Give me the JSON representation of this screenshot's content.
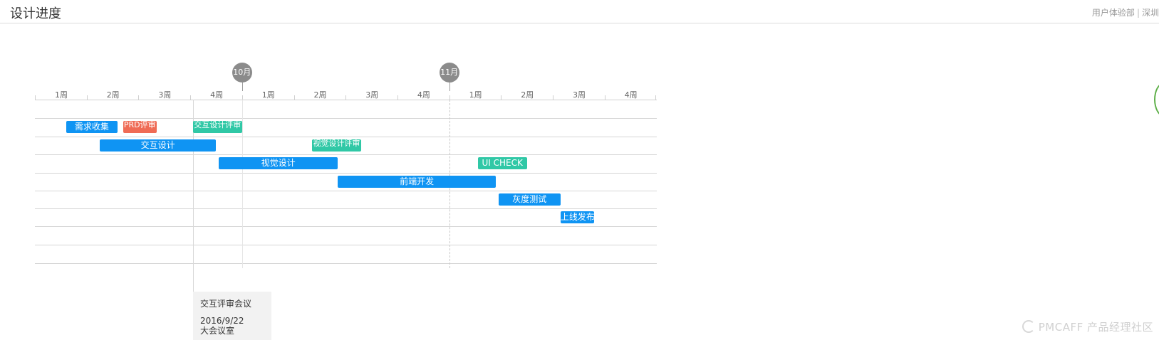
{
  "header": {
    "title": "设计进度",
    "org": "用户体验部",
    "separator": "|",
    "city": "深圳"
  },
  "timeline": {
    "months": [
      {
        "label": "10月"
      },
      {
        "label": "11月"
      }
    ],
    "weeks": [
      "1周",
      "2周",
      "3周",
      "4周",
      "1周",
      "2周",
      "3周",
      "4周",
      "1周",
      "2周",
      "3周",
      "4周"
    ]
  },
  "tasks": [
    {
      "id": "need",
      "label": "需求收集",
      "color": "blue",
      "start_week": 0.6,
      "end_week": 1.6
    },
    {
      "id": "prd",
      "label": "PRD评审",
      "color": "red",
      "start_week": 1.7,
      "end_week": 2.35
    },
    {
      "id": "ixreview",
      "label": "交互设计评审",
      "color": "teal",
      "start_week": 3.05,
      "end_week": 4.0
    },
    {
      "id": "ix",
      "label": "交互设计",
      "color": "blue",
      "start_week": 1.25,
      "end_week": 3.5
    },
    {
      "id": "vreview",
      "label": "视觉设计评审",
      "color": "teal",
      "start_week": 5.35,
      "end_week": 6.3
    },
    {
      "id": "visual",
      "label": "视觉设计",
      "color": "blue",
      "start_week": 3.55,
      "end_week": 5.85
    },
    {
      "id": "uicheck",
      "label": "UI CHECK",
      "color": "teal",
      "start_week": 8.55,
      "end_week": 9.5
    },
    {
      "id": "fe",
      "label": "前端开发",
      "color": "blue",
      "start_week": 5.85,
      "end_week": 8.9
    },
    {
      "id": "gray",
      "label": "灰度测试",
      "color": "blue",
      "start_week": 8.95,
      "end_week": 10.15
    },
    {
      "id": "launch",
      "label": "上线发布",
      "color": "blue",
      "start_week": 10.15,
      "end_week": 10.8
    }
  ],
  "event": {
    "title": "交互评审会议",
    "date": "2016/9/22",
    "place": "大会议室"
  },
  "watermark": {
    "text": "PMCAFF 产品经理社区"
  },
  "colors": {
    "blue": "#0f94f3",
    "teal": "#30c8a6",
    "red": "#ef6b55",
    "month_bubble": "#8b8b8b"
  }
}
